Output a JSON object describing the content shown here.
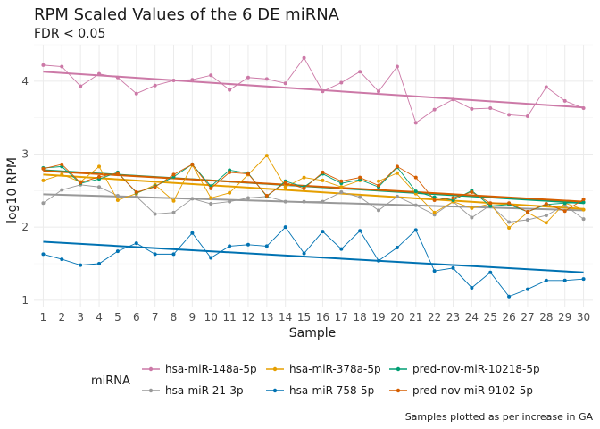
{
  "chart_data": {
    "type": "line",
    "title": "RPM Scaled Values of the 6 DE miRNA",
    "subtitle": "FDR < 0.05",
    "xlabel": "Sample",
    "ylabel": "log10 RPM",
    "caption": "Samples plotted as per increase in GA",
    "legend_title": "miRNA",
    "legend_position": "bottom",
    "grid": true,
    "ylim": [
      0.9,
      4.5
    ],
    "x": [
      1,
      2,
      3,
      4,
      5,
      6,
      7,
      8,
      9,
      10,
      11,
      12,
      13,
      14,
      15,
      16,
      17,
      18,
      19,
      20,
      21,
      22,
      23,
      24,
      25,
      26,
      27,
      28,
      29,
      30
    ],
    "yticks": [
      1,
      2,
      3,
      4
    ],
    "series": [
      {
        "name": "hsa-miR-148a-5p",
        "color": "#CC79A7",
        "values": [
          4.22,
          4.2,
          3.93,
          4.1,
          4.05,
          3.83,
          3.94,
          4.01,
          4.02,
          4.08,
          3.88,
          4.05,
          4.03,
          3.97,
          4.32,
          3.86,
          3.98,
          4.13,
          3.86,
          4.2,
          3.43,
          3.61,
          3.75,
          3.62,
          3.63,
          3.54,
          3.52,
          3.92,
          3.73,
          3.63
        ],
        "trend": [
          4.13,
          3.64
        ]
      },
      {
        "name": "hsa-miR-21-3p",
        "color": "#999999",
        "values": [
          2.33,
          2.51,
          2.58,
          2.55,
          2.43,
          2.42,
          2.18,
          2.2,
          2.39,
          2.32,
          2.35,
          2.4,
          2.42,
          2.35,
          2.35,
          2.35,
          2.48,
          2.41,
          2.23,
          2.42,
          2.3,
          2.17,
          2.35,
          2.13,
          2.3,
          2.07,
          2.1,
          2.16,
          2.3,
          2.11
        ],
        "trend": [
          2.45,
          2.23
        ]
      },
      {
        "name": "hsa-miR-378a-5p",
        "color": "#E69F00",
        "values": [
          2.64,
          2.72,
          2.62,
          2.83,
          2.37,
          2.46,
          2.58,
          2.36,
          2.85,
          2.4,
          2.47,
          2.72,
          2.98,
          2.55,
          2.68,
          2.64,
          2.55,
          2.64,
          2.63,
          2.74,
          2.46,
          2.2,
          2.35,
          2.26,
          2.32,
          1.99,
          2.2,
          2.06,
          2.33,
          2.24
        ],
        "trend": [
          2.72,
          2.25
        ]
      },
      {
        "name": "hsa-miR-758-5p",
        "color": "#0072B2",
        "values": [
          1.63,
          1.56,
          1.48,
          1.5,
          1.67,
          1.78,
          1.63,
          1.63,
          1.92,
          1.58,
          1.74,
          1.76,
          1.74,
          2.0,
          1.64,
          1.94,
          1.7,
          1.95,
          1.54,
          1.72,
          1.96,
          1.4,
          1.44,
          1.17,
          1.38,
          1.05,
          1.15,
          1.27,
          1.27,
          1.29
        ],
        "trend": [
          1.8,
          1.38
        ]
      },
      {
        "name": "pred-nov-miR-10218-5p",
        "color": "#009E73",
        "values": [
          2.81,
          2.83,
          2.6,
          2.66,
          2.75,
          2.47,
          2.56,
          2.69,
          2.86,
          2.56,
          2.78,
          2.74,
          2.42,
          2.63,
          2.55,
          2.73,
          2.6,
          2.65,
          2.55,
          2.82,
          2.49,
          2.41,
          2.37,
          2.5,
          2.29,
          2.31,
          2.21,
          2.31,
          2.33,
          2.34
        ],
        "trend": [
          2.78,
          2.33
        ]
      },
      {
        "name": "pred-nov-miR-9102-5p",
        "color": "#D55E00",
        "values": [
          2.8,
          2.86,
          2.61,
          2.69,
          2.74,
          2.48,
          2.55,
          2.72,
          2.86,
          2.53,
          2.75,
          2.73,
          2.43,
          2.61,
          2.53,
          2.75,
          2.63,
          2.68,
          2.57,
          2.83,
          2.68,
          2.37,
          2.4,
          2.48,
          2.33,
          2.33,
          2.21,
          2.32,
          2.22,
          2.38
        ],
        "trend": [
          2.77,
          2.35
        ]
      }
    ]
  }
}
